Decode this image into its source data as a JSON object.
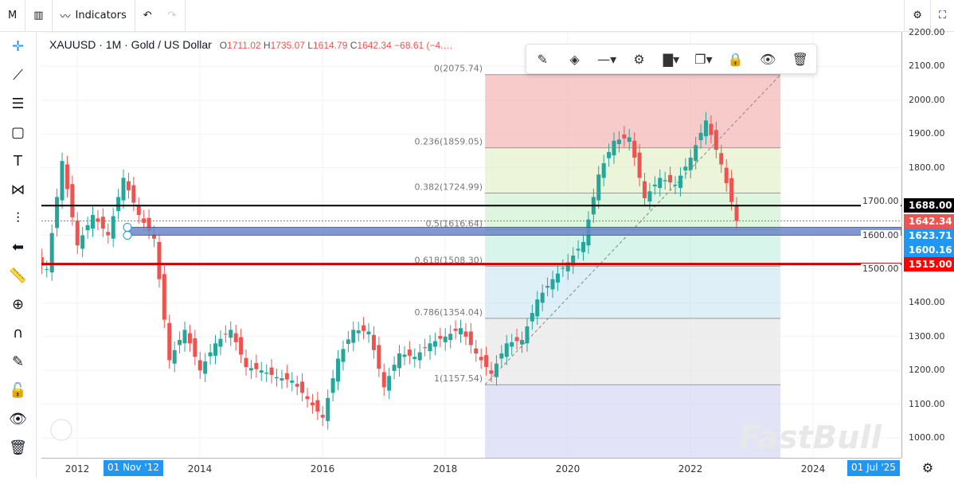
{
  "topbar": {
    "interval": "M",
    "indicators_label": "Indicators"
  },
  "legend": {
    "symbol": "XAUUSD · 1M · Gold / US Dollar",
    "open": "1711.02",
    "high": "1735.07",
    "low": "1614.79",
    "close": "1642.34",
    "change": "−68.61 (−4.…"
  },
  "price_axis": {
    "ticks": [
      "2200.00",
      "2100.00",
      "2000.00",
      "1900.00",
      "1800.00",
      "1700.00",
      "1600.00",
      "1500.00",
      "1400.00",
      "1300.00",
      "1200.00",
      "1100.00",
      "1000.00"
    ],
    "labels": [
      {
        "text": "1688.00",
        "color": "#000000",
        "price": 1688
      },
      {
        "text": "1642.34",
        "color": "#ef5350",
        "price": 1642.34
      },
      {
        "text": "1623.71",
        "color": "#2196f3",
        "price": 1623.71
      },
      {
        "text": "1600.16",
        "color": "#2196f3",
        "price": 1600.16
      },
      {
        "text": "1515.00",
        "color": "#ff0000",
        "price": 1515
      }
    ]
  },
  "time_axis": {
    "ticks": [
      "2012",
      "2014",
      "2016",
      "2018",
      "2020",
      "2022",
      "2024"
    ],
    "labels": [
      "01 Nov '12",
      "01 Jul '25"
    ]
  },
  "fib": {
    "levels": [
      {
        "ratio": "0",
        "price": 2075.74,
        "text": "0(2075.74)",
        "color": "#f4a9a9"
      },
      {
        "ratio": "0.236",
        "price": 1859.05,
        "text": "0.236(1859.05)",
        "color": "#e0ecc0"
      },
      {
        "ratio": "0.382",
        "price": 1724.99,
        "text": "0.382(1724.99)",
        "color": "#c8eec8"
      },
      {
        "ratio": "0.5",
        "price": 1616.64,
        "text": "0.5(1616.64)",
        "color": "#bdeede"
      },
      {
        "ratio": "0.618",
        "price": 1508.3,
        "text": "0.618(1508.30)",
        "color": "#c8e4f4"
      },
      {
        "ratio": "0.786",
        "price": 1354.04,
        "text": "0.786(1354.04)",
        "color": "#e2e2e2"
      },
      {
        "ratio": "1",
        "price": 1157.54,
        "text": "1(1157.54)",
        "color": "#d0d0f4"
      }
    ]
  },
  "closes": [
    [
      2011.42,
      1500
    ],
    [
      2011.67,
      1820
    ],
    [
      2011.92,
      1570
    ],
    [
      2012.17,
      1660
    ],
    [
      2012.42,
      1600
    ],
    [
      2012.67,
      1770
    ],
    [
      2012.92,
      1660
    ],
    [
      2013.17,
      1590
    ],
    [
      2013.42,
      1230
    ],
    [
      2013.67,
      1320
    ],
    [
      2013.92,
      1200
    ],
    [
      2014.17,
      1280
    ],
    [
      2014.42,
      1320
    ],
    [
      2014.67,
      1210
    ],
    [
      2014.92,
      1200
    ],
    [
      2015.17,
      1180
    ],
    [
      2015.42,
      1170
    ],
    [
      2015.67,
      1115
    ],
    [
      2015.92,
      1060
    ],
    [
      2016.17,
      1235
    ],
    [
      2016.42,
      1320
    ],
    [
      2016.67,
      1315
    ],
    [
      2016.92,
      1150
    ],
    [
      2017.17,
      1250
    ],
    [
      2017.42,
      1240
    ],
    [
      2017.67,
      1280
    ],
    [
      2017.92,
      1300
    ],
    [
      2018.17,
      1325
    ],
    [
      2018.42,
      1250
    ],
    [
      2018.67,
      1190
    ],
    [
      2018.92,
      1280
    ],
    [
      2019.17,
      1290
    ],
    [
      2019.42,
      1410
    ],
    [
      2019.67,
      1470
    ],
    [
      2019.92,
      1520
    ],
    [
      2020.17,
      1580
    ],
    [
      2020.42,
      1780
    ],
    [
      2020.67,
      1880
    ],
    [
      2020.92,
      1890
    ],
    [
      2021.17,
      1710
    ],
    [
      2021.42,
      1770
    ],
    [
      2021.67,
      1750
    ],
    [
      2021.92,
      1830
    ],
    [
      2022.17,
      1940
    ],
    [
      2022.42,
      1810
    ],
    [
      2022.67,
      1642.34
    ]
  ],
  "colors": {
    "up": "#26a69a",
    "down": "#ef5350"
  },
  "watermark": "FastBull"
}
